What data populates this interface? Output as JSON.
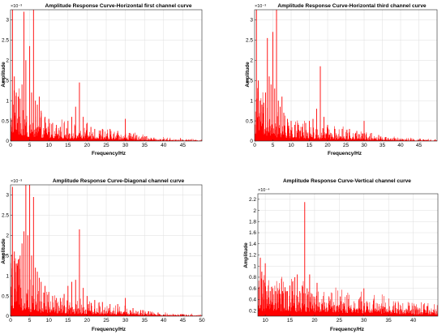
{
  "chart_data": [
    {
      "type": "line",
      "title": "Amplitude Response Curve-Horizontal first channel curve",
      "xlabel": "Frequency/Hz",
      "ylabel": "Amplitude",
      "exponent_label": "×10⁻³",
      "xlim": [
        0,
        50
      ],
      "ylim": [
        0,
        3.25
      ],
      "xticks": [
        0,
        5,
        10,
        15,
        20,
        25,
        30,
        35,
        40,
        45
      ],
      "yticks": [
        0,
        0.5,
        1,
        1.5,
        2,
        2.5,
        3
      ],
      "grid": true,
      "color": "#ff0000",
      "peaks": [
        {
          "x": 0.5,
          "y": 3.25
        },
        {
          "x": 1.0,
          "y": 1.6
        },
        {
          "x": 1.5,
          "y": 1.2
        },
        {
          "x": 2.0,
          "y": 1.1
        },
        {
          "x": 2.5,
          "y": 1.05
        },
        {
          "x": 3.0,
          "y": 1.4
        },
        {
          "x": 3.5,
          "y": 3.2
        },
        {
          "x": 4.0,
          "y": 2.0
        },
        {
          "x": 5.0,
          "y": 2.35
        },
        {
          "x": 5.5,
          "y": 1.2
        },
        {
          "x": 6.0,
          "y": 3.25
        },
        {
          "x": 6.5,
          "y": 1.0
        },
        {
          "x": 7.0,
          "y": 0.9
        },
        {
          "x": 7.5,
          "y": 1.1
        },
        {
          "x": 8.0,
          "y": 0.75
        },
        {
          "x": 9.0,
          "y": 0.6
        },
        {
          "x": 10.0,
          "y": 0.55
        },
        {
          "x": 11.0,
          "y": 0.45
        },
        {
          "x": 12.0,
          "y": 0.4
        },
        {
          "x": 13.0,
          "y": 0.35
        },
        {
          "x": 14.0,
          "y": 0.45
        },
        {
          "x": 15.0,
          "y": 0.5
        },
        {
          "x": 16.0,
          "y": 0.6
        },
        {
          "x": 17.0,
          "y": 0.85
        },
        {
          "x": 18.0,
          "y": 1.45
        },
        {
          "x": 19.0,
          "y": 0.6
        },
        {
          "x": 20.0,
          "y": 0.45
        },
        {
          "x": 21.0,
          "y": 0.35
        },
        {
          "x": 22.0,
          "y": 0.3
        },
        {
          "x": 24.0,
          "y": 0.3
        },
        {
          "x": 26.0,
          "y": 0.3
        },
        {
          "x": 28.0,
          "y": 0.25
        },
        {
          "x": 30.0,
          "y": 0.55
        },
        {
          "x": 31.0,
          "y": 0.2
        },
        {
          "x": 33.0,
          "y": 0.15
        },
        {
          "x": 35.0,
          "y": 0.12
        }
      ],
      "noise_level": [
        [
          0,
          0.7
        ],
        [
          5,
          0.35
        ],
        [
          15,
          0.2
        ],
        [
          30,
          0.12
        ],
        [
          38,
          0.05
        ],
        [
          50,
          0.02
        ]
      ]
    },
    {
      "type": "line",
      "title": "Amplitude Response Curve-Horizontal third channel curve",
      "xlabel": "Frequency/Hz",
      "ylabel": "Amplitude",
      "exponent_label": "×10⁻³",
      "xlim": [
        0,
        50
      ],
      "ylim": [
        0,
        3.25
      ],
      "xticks": [
        0,
        5,
        10,
        15,
        20,
        25,
        30,
        35,
        40,
        45
      ],
      "yticks": [
        0,
        0.5,
        1,
        1.5,
        2,
        2.5,
        3
      ],
      "grid": true,
      "color": "#ff0000",
      "peaks": [
        {
          "x": 0.5,
          "y": 3.25
        },
        {
          "x": 1.0,
          "y": 1.5
        },
        {
          "x": 1.5,
          "y": 1.0
        },
        {
          "x": 2.0,
          "y": 0.9
        },
        {
          "x": 2.5,
          "y": 0.95
        },
        {
          "x": 3.0,
          "y": 1.2
        },
        {
          "x": 3.5,
          "y": 2.55
        },
        {
          "x": 4.0,
          "y": 1.6
        },
        {
          "x": 4.5,
          "y": 1.4
        },
        {
          "x": 5.0,
          "y": 2.7
        },
        {
          "x": 5.5,
          "y": 1.3
        },
        {
          "x": 6.0,
          "y": 3.25
        },
        {
          "x": 6.5,
          "y": 1.0
        },
        {
          "x": 7.0,
          "y": 0.85
        },
        {
          "x": 7.5,
          "y": 1.1
        },
        {
          "x": 8.0,
          "y": 0.7
        },
        {
          "x": 9.0,
          "y": 0.55
        },
        {
          "x": 10.0,
          "y": 0.5
        },
        {
          "x": 11.0,
          "y": 0.4
        },
        {
          "x": 12.0,
          "y": 0.4
        },
        {
          "x": 13.0,
          "y": 0.35
        },
        {
          "x": 14.0,
          "y": 0.45
        },
        {
          "x": 15.0,
          "y": 0.5
        },
        {
          "x": 16.0,
          "y": 0.55
        },
        {
          "x": 17.0,
          "y": 0.8
        },
        {
          "x": 18.0,
          "y": 1.85
        },
        {
          "x": 19.0,
          "y": 0.6
        },
        {
          "x": 20.0,
          "y": 0.4
        },
        {
          "x": 22.0,
          "y": 0.3
        },
        {
          "x": 24.0,
          "y": 0.3
        },
        {
          "x": 26.0,
          "y": 0.3
        },
        {
          "x": 28.0,
          "y": 0.25
        },
        {
          "x": 30.0,
          "y": 0.5
        },
        {
          "x": 32.0,
          "y": 0.2
        },
        {
          "x": 34.0,
          "y": 0.15
        },
        {
          "x": 36.0,
          "y": 0.1
        }
      ],
      "noise_level": [
        [
          0,
          0.7
        ],
        [
          5,
          0.35
        ],
        [
          15,
          0.2
        ],
        [
          30,
          0.12
        ],
        [
          38,
          0.05
        ],
        [
          50,
          0.02
        ]
      ]
    },
    {
      "type": "line",
      "title": "Amplitude Response Curve-Diagonal channel curve",
      "xlabel": "Frequency/Hz",
      "ylabel": "Amplitude",
      "exponent_label": "×10⁻³",
      "xlim": [
        0,
        50
      ],
      "ylim": [
        0,
        3.25
      ],
      "xticks": [
        0,
        5,
        10,
        15,
        20,
        25,
        30,
        35,
        40,
        45,
        50
      ],
      "yticks": [
        0,
        0.5,
        1,
        1.5,
        2,
        2.5,
        3
      ],
      "grid": true,
      "color": "#ff0000",
      "peaks": [
        {
          "x": 0.5,
          "y": 3.2
        },
        {
          "x": 1.0,
          "y": 1.6
        },
        {
          "x": 1.5,
          "y": 1.3
        },
        {
          "x": 2.0,
          "y": 1.4
        },
        {
          "x": 2.5,
          "y": 1.5
        },
        {
          "x": 3.0,
          "y": 1.8
        },
        {
          "x": 3.5,
          "y": 2.1
        },
        {
          "x": 4.0,
          "y": 3.25
        },
        {
          "x": 4.5,
          "y": 2.0
        },
        {
          "x": 5.0,
          "y": 3.25
        },
        {
          "x": 5.5,
          "y": 1.5
        },
        {
          "x": 6.0,
          "y": 2.95
        },
        {
          "x": 6.5,
          "y": 1.2
        },
        {
          "x": 7.0,
          "y": 1.1
        },
        {
          "x": 7.5,
          "y": 0.95
        },
        {
          "x": 8.0,
          "y": 0.85
        },
        {
          "x": 9.0,
          "y": 0.75
        },
        {
          "x": 10.0,
          "y": 0.6
        },
        {
          "x": 11.0,
          "y": 0.5
        },
        {
          "x": 12.0,
          "y": 0.45
        },
        {
          "x": 13.0,
          "y": 0.45
        },
        {
          "x": 14.0,
          "y": 0.55
        },
        {
          "x": 15.0,
          "y": 0.75
        },
        {
          "x": 16.0,
          "y": 0.85
        },
        {
          "x": 17.0,
          "y": 0.9
        },
        {
          "x": 18.0,
          "y": 2.15
        },
        {
          "x": 19.0,
          "y": 0.7
        },
        {
          "x": 20.0,
          "y": 0.5
        },
        {
          "x": 22.0,
          "y": 0.4
        },
        {
          "x": 24.0,
          "y": 0.35
        },
        {
          "x": 26.0,
          "y": 0.3
        },
        {
          "x": 28.0,
          "y": 0.3
        },
        {
          "x": 30.0,
          "y": 0.45
        },
        {
          "x": 32.0,
          "y": 0.2
        },
        {
          "x": 34.0,
          "y": 0.15
        },
        {
          "x": 36.0,
          "y": 0.12
        }
      ],
      "noise_level": [
        [
          0,
          0.8
        ],
        [
          5,
          0.4
        ],
        [
          15,
          0.22
        ],
        [
          30,
          0.12
        ],
        [
          38,
          0.05
        ],
        [
          50,
          0.02
        ]
      ]
    },
    {
      "type": "line",
      "title": "Amplitude Response Curve-Vertical channel curve",
      "xlabel": "Frequency/Hz",
      "ylabel": "Amplitude",
      "exponent_label": "×10⁻⁴",
      "xlim": [
        8.5,
        45
      ],
      "ylim": [
        0.1,
        2.3
      ],
      "xticks": [
        10,
        15,
        20,
        25,
        30,
        35,
        40
      ],
      "yticks": [
        0.2,
        0.4,
        0.6,
        0.8,
        1,
        1.2,
        1.4,
        1.6,
        1.8,
        2,
        2.2
      ],
      "grid": true,
      "color": "#ff0000",
      "peaks": [
        {
          "x": 9.0,
          "y": 1.15
        },
        {
          "x": 9.3,
          "y": 0.9
        },
        {
          "x": 9.6,
          "y": 0.75
        },
        {
          "x": 10.0,
          "y": 1.05
        },
        {
          "x": 10.5,
          "y": 0.55
        },
        {
          "x": 11.0,
          "y": 0.55
        },
        {
          "x": 11.5,
          "y": 0.6
        },
        {
          "x": 12.0,
          "y": 0.55
        },
        {
          "x": 12.5,
          "y": 0.5
        },
        {
          "x": 13.0,
          "y": 0.5
        },
        {
          "x": 13.5,
          "y": 0.55
        },
        {
          "x": 14.0,
          "y": 0.62
        },
        {
          "x": 14.5,
          "y": 0.55
        },
        {
          "x": 15.0,
          "y": 0.65
        },
        {
          "x": 15.5,
          "y": 0.55
        },
        {
          "x": 16.0,
          "y": 0.8
        },
        {
          "x": 16.5,
          "y": 0.85
        },
        {
          "x": 17.0,
          "y": 0.55
        },
        {
          "x": 17.5,
          "y": 0.65
        },
        {
          "x": 18.0,
          "y": 2.15
        },
        {
          "x": 18.5,
          "y": 0.6
        },
        {
          "x": 19.0,
          "y": 0.85
        },
        {
          "x": 19.5,
          "y": 0.5
        },
        {
          "x": 20.0,
          "y": 0.45
        },
        {
          "x": 20.5,
          "y": 0.7
        },
        {
          "x": 21.0,
          "y": 0.35
        },
        {
          "x": 22.0,
          "y": 0.35
        },
        {
          "x": 23.0,
          "y": 0.3
        },
        {
          "x": 24.0,
          "y": 0.3
        },
        {
          "x": 25.0,
          "y": 0.3
        },
        {
          "x": 26.0,
          "y": 0.28
        },
        {
          "x": 27.0,
          "y": 0.28
        },
        {
          "x": 28.0,
          "y": 0.25
        },
        {
          "x": 29.0,
          "y": 0.25
        },
        {
          "x": 30.0,
          "y": 0.6
        },
        {
          "x": 31.0,
          "y": 0.22
        },
        {
          "x": 32.0,
          "y": 0.22
        },
        {
          "x": 33.0,
          "y": 0.2
        },
        {
          "x": 34.0,
          "y": 0.18
        },
        {
          "x": 35.0,
          "y": 0.17
        },
        {
          "x": 36.0,
          "y": 0.16
        },
        {
          "x": 37.0,
          "y": 0.15
        },
        {
          "x": 38.0,
          "y": 0.14
        }
      ],
      "noise_level": [
        [
          8.5,
          0.38
        ],
        [
          15,
          0.3
        ],
        [
          25,
          0.24
        ],
        [
          35,
          0.16
        ],
        [
          40,
          0.12
        ],
        [
          45,
          0.1
        ]
      ]
    }
  ]
}
